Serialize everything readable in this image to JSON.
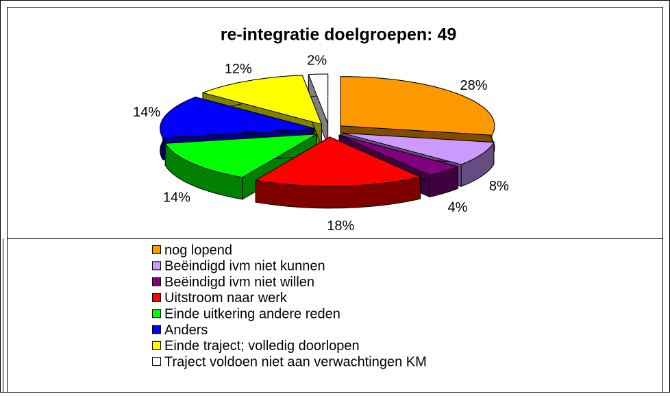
{
  "chart_data": {
    "type": "pie",
    "title": "re-integratie doelgroepen: 49",
    "categories": [
      "nog lopend",
      "Beëindigd ivm niet kunnen",
      "Beëindigd ivm niet willen",
      "Uitstroom naar werk",
      "Einde uitkering andere reden",
      "Anders",
      "Einde traject; volledig doorlopen",
      "Traject voldoen niet aan verwachtingen KM"
    ],
    "values": [
      28,
      8,
      4,
      18,
      14,
      14,
      12,
      2
    ],
    "value_labels": [
      "28%",
      "8%",
      "4%",
      "18%",
      "14%",
      "14%",
      "12%",
      "2%"
    ],
    "colors": [
      "#ff9900",
      "#cc99ff",
      "#800080",
      "#ff0000",
      "#00ff00",
      "#0000ff",
      "#ffff00",
      "#ffffff"
    ]
  }
}
